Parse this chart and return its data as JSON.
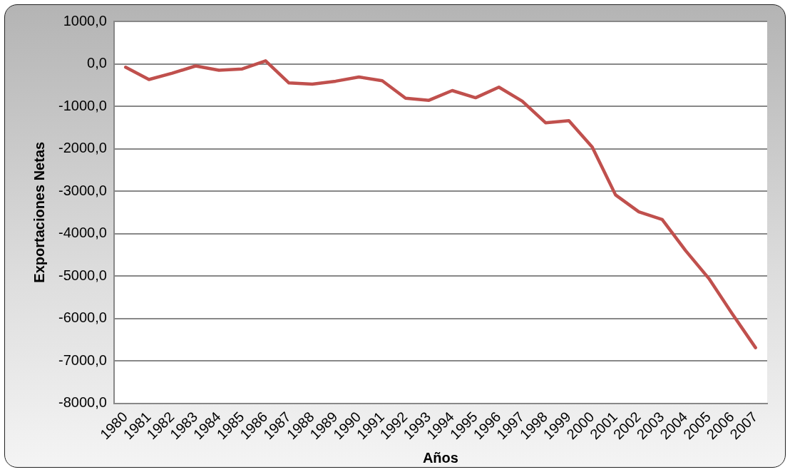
{
  "chart_data": {
    "type": "line",
    "xlabel": "Años",
    "ylabel": "Exportaciones Netas",
    "categories": [
      "1980",
      "1981",
      "1982",
      "1983",
      "1984",
      "1985",
      "1986",
      "1987",
      "1988",
      "1989",
      "1990",
      "1991",
      "1992",
      "1993",
      "1994",
      "1995",
      "1996",
      "1997",
      "1998",
      "1999",
      "2000",
      "2001",
      "2002",
      "2003",
      "2004",
      "2005",
      "2006",
      "2007"
    ],
    "series": [
      {
        "color": "#c0504d",
        "values": [
          -80,
          -370,
          -220,
          -50,
          -150,
          -120,
          70,
          -450,
          -480,
          -410,
          -310,
          -400,
          -810,
          -860,
          -630,
          -800,
          -550,
          -880,
          -1390,
          -1340,
          -1960,
          -3090,
          -3490,
          -3670,
          -4400,
          -5060,
          -5890,
          -6690
        ]
      }
    ],
    "ylim": [
      -8000,
      1000
    ],
    "yticks": [
      {
        "value": 1000,
        "label": "1000,0"
      },
      {
        "value": 0,
        "label": "0,0"
      },
      {
        "value": -1000,
        "label": "-1000,0"
      },
      {
        "value": -2000,
        "label": "-2000,0"
      },
      {
        "value": -3000,
        "label": "-3000,0"
      },
      {
        "value": -4000,
        "label": "-4000,0"
      },
      {
        "value": -5000,
        "label": "-5000,0"
      },
      {
        "value": -6000,
        "label": "-6000,0"
      },
      {
        "value": -7000,
        "label": "-7000,0"
      },
      {
        "value": -8000,
        "label": "-8000,0"
      }
    ],
    "grid": "y",
    "legend": false,
    "marker": "none",
    "line_style": "solid"
  }
}
